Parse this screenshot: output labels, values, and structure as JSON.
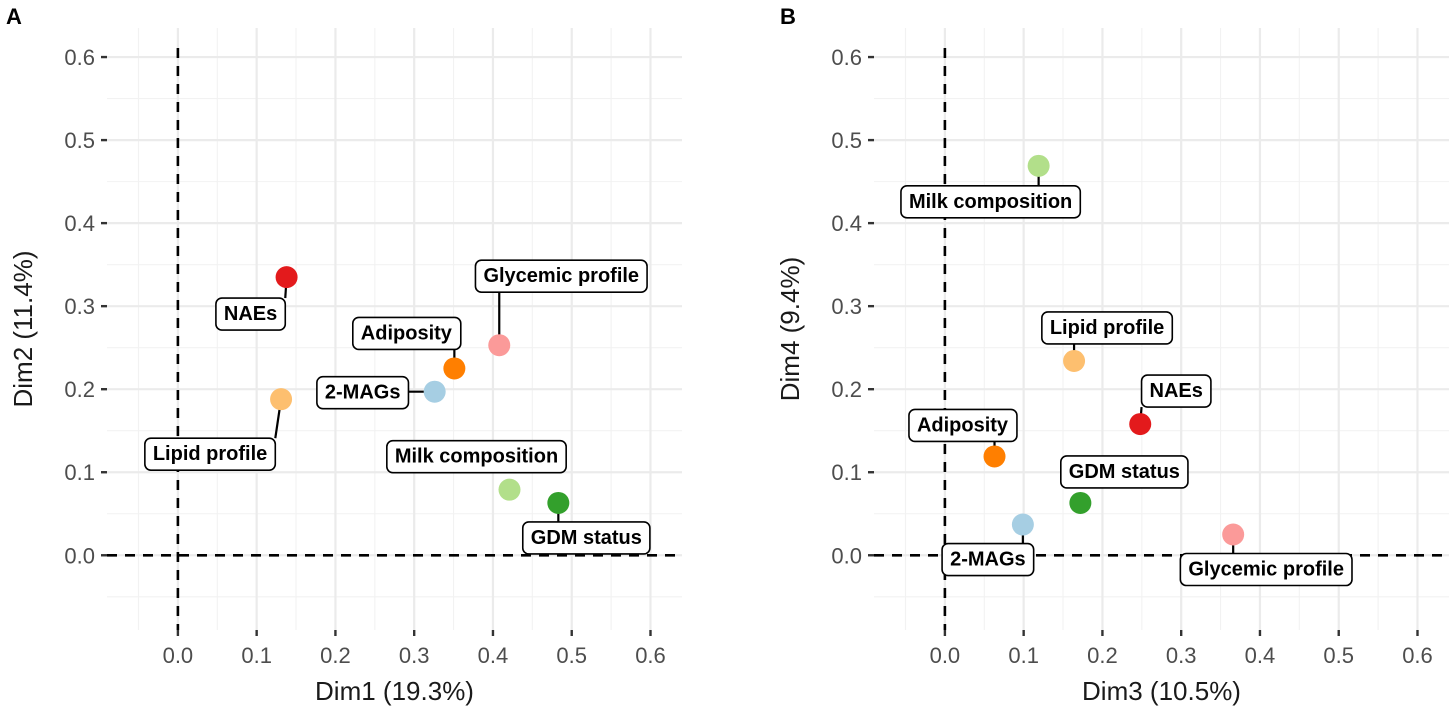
{
  "chart_data": [
    {
      "type": "scatter",
      "panel": "A",
      "xlabel": "Dim1 (19.3%)",
      "ylabel": "Dim2 (11.4%)",
      "xlim": [
        -0.09,
        0.64
      ],
      "ylim": [
        -0.09,
        0.635
      ],
      "xticks": [
        "0.0",
        "0.1",
        "0.2",
        "0.3",
        "0.4",
        "0.5",
        "0.6"
      ],
      "yticks": [
        "0.0",
        "0.1",
        "0.2",
        "0.3",
        "0.4",
        "0.5",
        "0.6"
      ],
      "points": [
        {
          "name": "NAEs",
          "x": 0.138,
          "y": 0.335,
          "color": "#e31a1c"
        },
        {
          "name": "Glycemic profile",
          "x": 0.408,
          "y": 0.253,
          "color": "#fb9a99"
        },
        {
          "name": "Adiposity",
          "x": 0.351,
          "y": 0.225,
          "color": "#ff7f00"
        },
        {
          "name": "2-MAGs",
          "x": 0.326,
          "y": 0.197,
          "color": "#a6cee3"
        },
        {
          "name": "Lipid profile",
          "x": 0.131,
          "y": 0.188,
          "color": "#fdbf6f"
        },
        {
          "name": "Milk composition",
          "x": 0.421,
          "y": 0.079,
          "color": "#b2df8a"
        },
        {
          "name": "GDM status",
          "x": 0.483,
          "y": 0.063,
          "color": "#33a02c"
        }
      ]
    },
    {
      "type": "scatter",
      "panel": "B",
      "xlabel": "Dim3 (10.5%)",
      "ylabel": "Dim4 (9.4%)",
      "xlim": [
        -0.09,
        0.64
      ],
      "ylim": [
        -0.09,
        0.635
      ],
      "xticks": [
        "0.0",
        "0.1",
        "0.2",
        "0.3",
        "0.4",
        "0.5",
        "0.6"
      ],
      "yticks": [
        "0.0",
        "0.1",
        "0.2",
        "0.3",
        "0.4",
        "0.5",
        "0.6"
      ],
      "points": [
        {
          "name": "Milk composition",
          "x": 0.119,
          "y": 0.469,
          "color": "#b2df8a"
        },
        {
          "name": "Lipid profile",
          "x": 0.164,
          "y": 0.234,
          "color": "#fdbf6f"
        },
        {
          "name": "NAEs",
          "x": 0.248,
          "y": 0.158,
          "color": "#e31a1c"
        },
        {
          "name": "Adiposity",
          "x": 0.063,
          "y": 0.119,
          "color": "#ff7f00"
        },
        {
          "name": "GDM status",
          "x": 0.172,
          "y": 0.063,
          "color": "#33a02c"
        },
        {
          "name": "2-MAGs",
          "x": 0.099,
          "y": 0.037,
          "color": "#a6cee3"
        },
        {
          "name": "Glycemic profile",
          "x": 0.366,
          "y": 0.025,
          "color": "#fb9a99"
        }
      ]
    }
  ]
}
